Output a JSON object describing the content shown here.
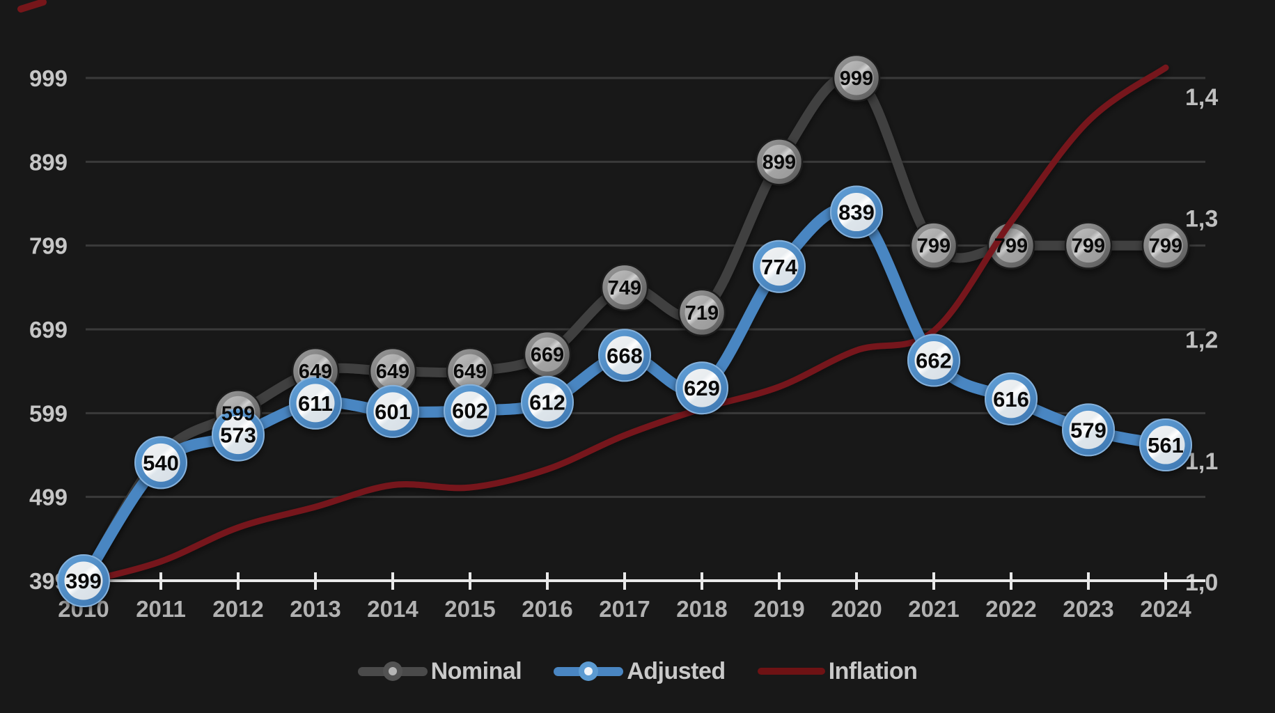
{
  "chart_data": {
    "type": "line",
    "title": "",
    "categories": [
      "2010",
      "2011",
      "2012",
      "2013",
      "2014",
      "2015",
      "2016",
      "2017",
      "2018",
      "2019",
      "2020",
      "2021",
      "2022",
      "2023",
      "2024"
    ],
    "series": [
      {
        "name": "Nominal",
        "axis": "left",
        "color": "#3f3f3f",
        "values": [
          399,
          549,
          599,
          649,
          649,
          649,
          669,
          749,
          719,
          899,
          999,
          799,
          799,
          799,
          799
        ],
        "point_labels": [
          "",
          "",
          "599",
          "649",
          "649",
          "649",
          "669",
          "749",
          "719",
          "899",
          "999",
          "799",
          "799",
          "799",
          "799"
        ]
      },
      {
        "name": "Adjusted",
        "axis": "left",
        "color": "#4a86c2",
        "values": [
          399,
          540,
          573,
          611,
          601,
          602,
          612,
          668,
          629,
          774,
          839,
          662,
          616,
          579,
          561
        ],
        "point_labels": [
          "399",
          "540",
          "573",
          "611",
          "601",
          "602",
          "612",
          "668",
          "629",
          "774",
          "839",
          "662",
          "616",
          "579",
          "561"
        ]
      },
      {
        "name": "Inflation",
        "axis": "right",
        "color": "#76161a",
        "values": [
          1.0,
          1.017,
          1.045,
          1.062,
          1.08,
          1.078,
          1.093,
          1.121,
          1.143,
          1.161,
          1.191,
          1.207,
          1.297,
          1.38,
          1.424
        ],
        "point_labels": [
          "",
          "",
          "",
          "",
          "",
          "",
          "",
          "",
          "",
          "",
          "",
          "",
          "",
          "",
          ""
        ]
      }
    ],
    "left_axis": {
      "ticks": [
        399,
        499,
        599,
        699,
        799,
        899,
        999
      ],
      "min": 399,
      "max": 999
    },
    "right_axis": {
      "tick_labels": [
        "1,0",
        "1,1",
        "1,2",
        "1,3",
        "1,4"
      ],
      "tick_values": [
        1.0,
        1.1,
        1.2,
        1.3,
        1.4
      ],
      "min": 1.0,
      "max": 1.4
    },
    "grid": "horizontal-on",
    "legend_position": "bottom"
  },
  "legend": {
    "items": [
      {
        "label": "Nominal",
        "color": "#4a4a4a",
        "dot_ring": "#525252",
        "dot_core": "#b5b5b5",
        "has_dot": true
      },
      {
        "label": "Adjusted",
        "color": "#4a86c2",
        "dot_ring": "#5c9bd2",
        "dot_core": "#f2f6fa",
        "has_dot": true
      },
      {
        "label": "Inflation",
        "color": "#6e1214",
        "dot_ring": "",
        "dot_core": "",
        "has_dot": false
      }
    ]
  },
  "colors": {
    "background": "#181818",
    "gridline": "#3a3a3a",
    "axis_line": "#e9e9e9",
    "left_tick_text": "#c6c6c6",
    "right_tick_text": "#bfbfbf",
    "x_tick_text": "#b2b2b2",
    "marker_label": "#0a0a0a"
  }
}
